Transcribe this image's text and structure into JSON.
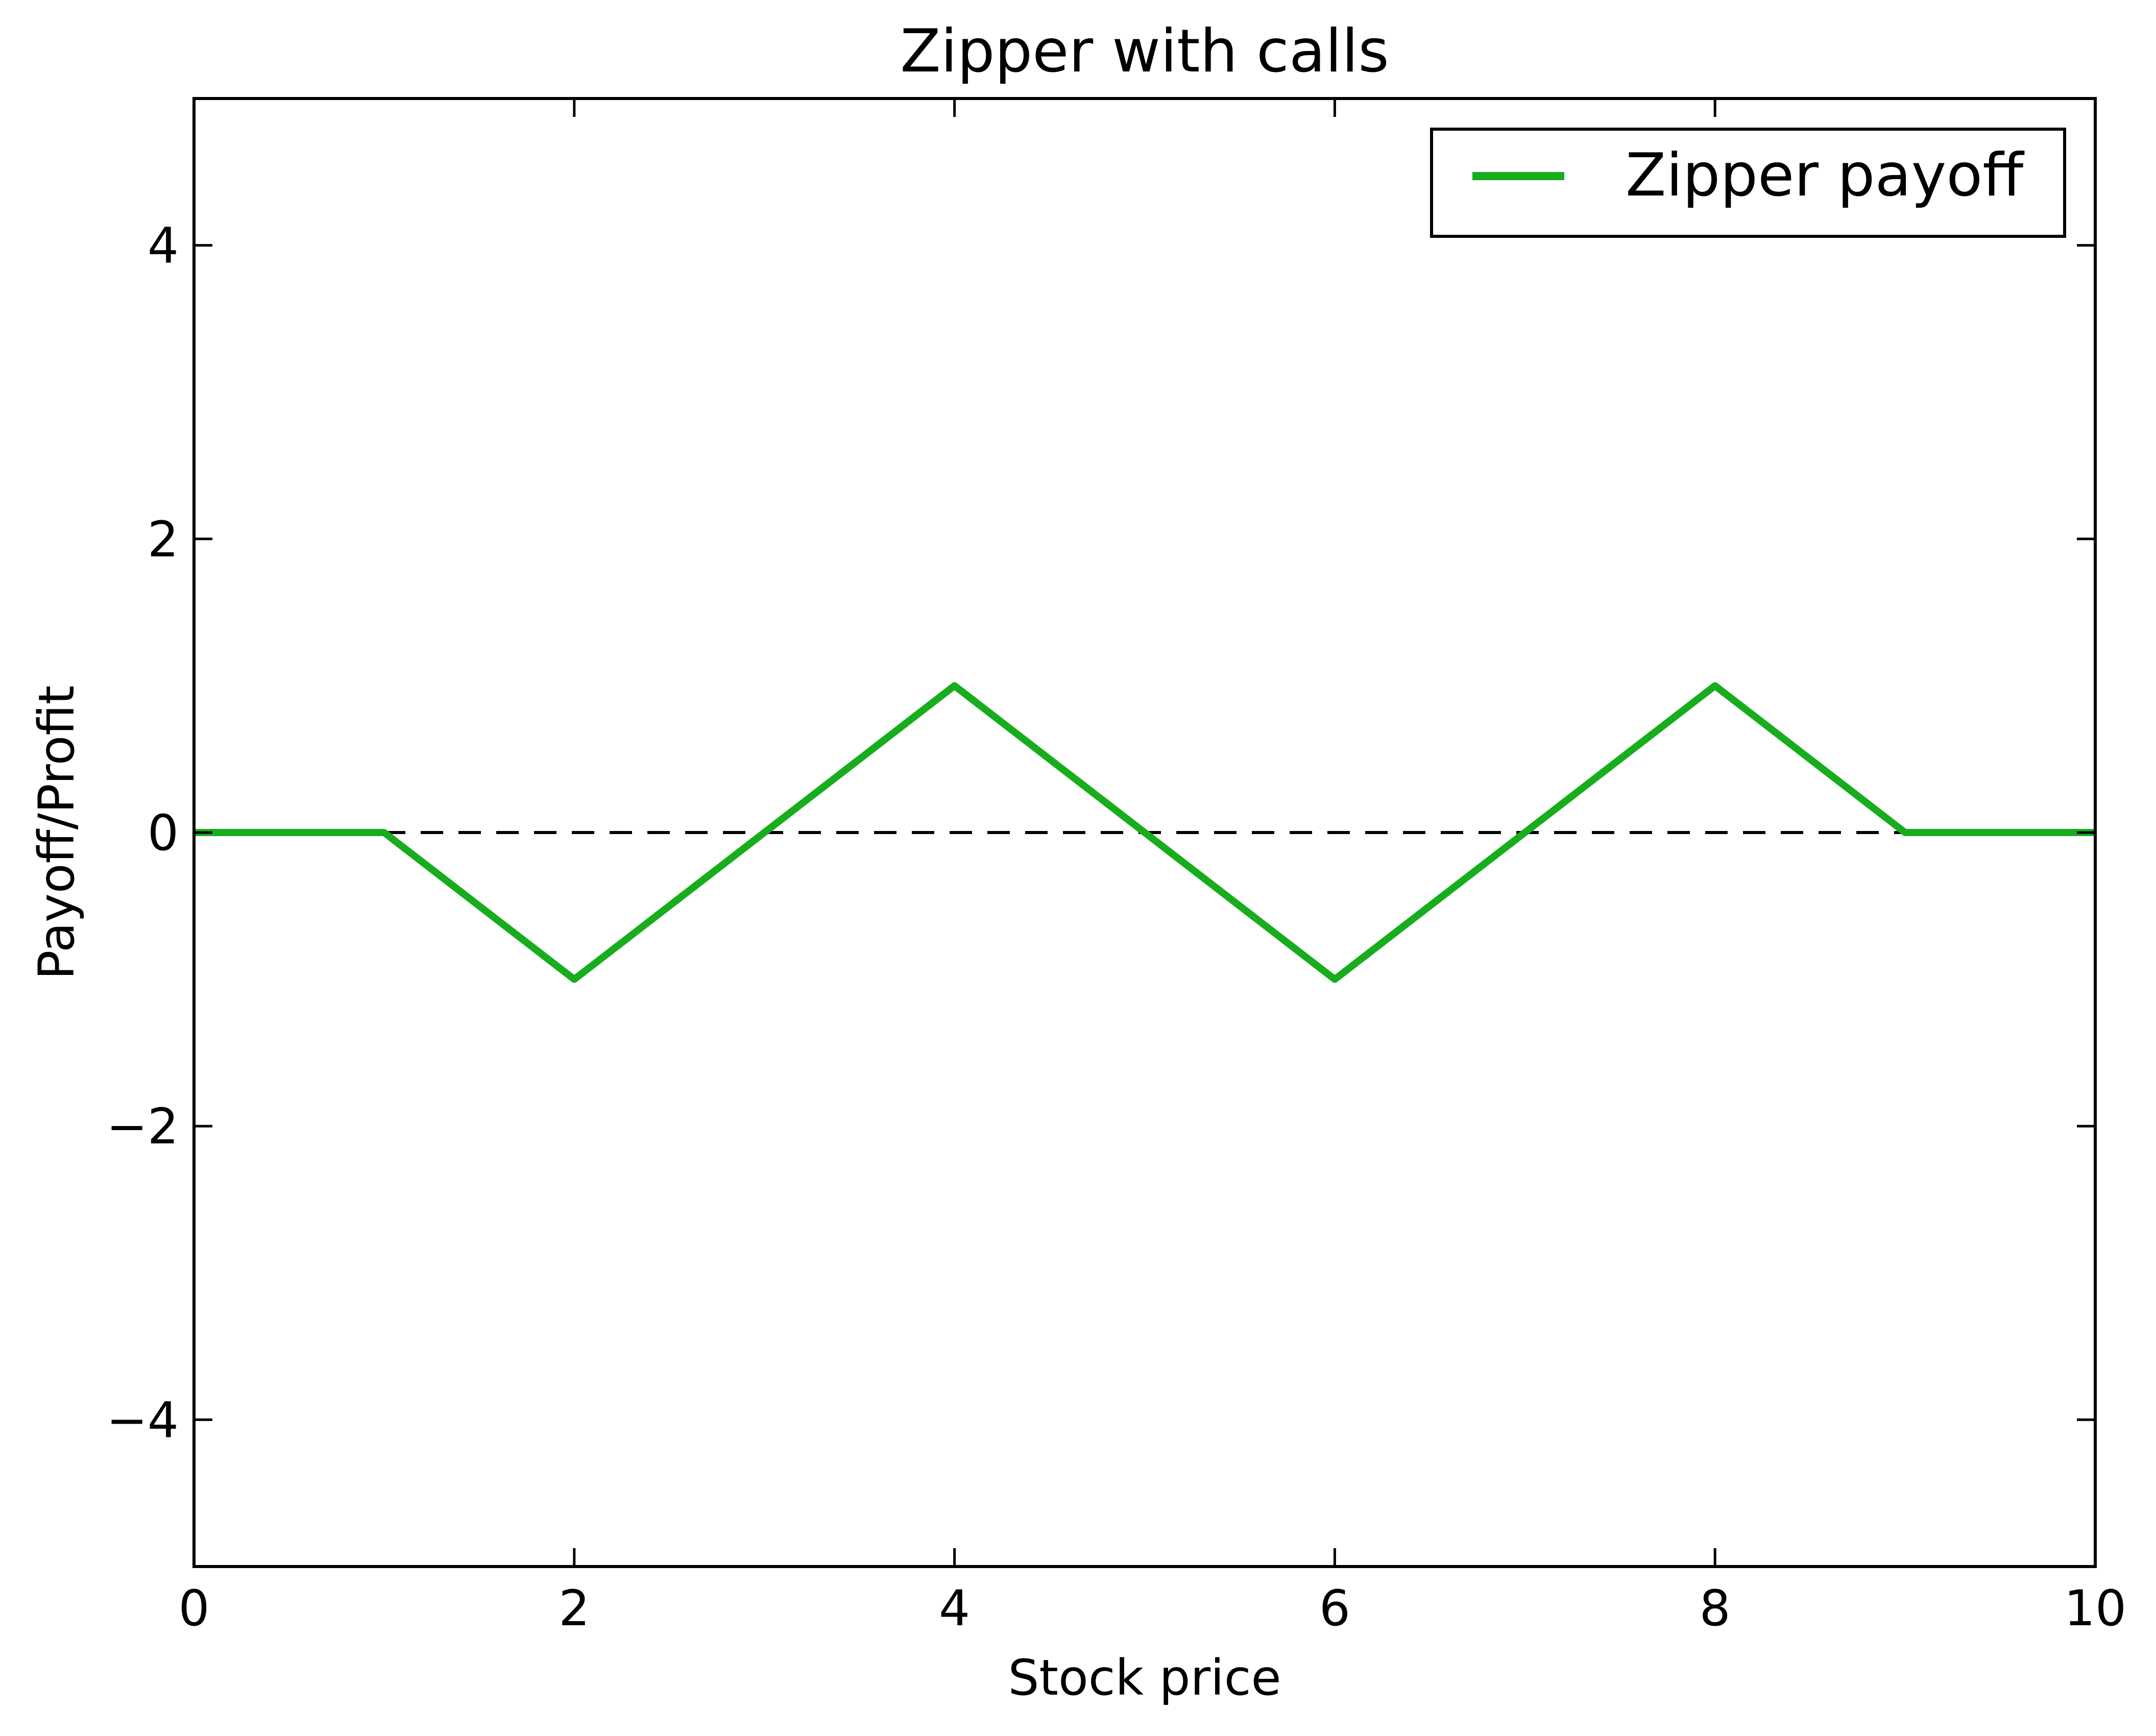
{
  "chart_data": {
    "type": "line",
    "title": "Zipper with calls",
    "xlabel": "Stock price",
    "ylabel": "Payoff/Profit",
    "xlim": [
      0,
      10
    ],
    "ylim": [
      -5,
      5
    ],
    "xticks": [
      0,
      2,
      4,
      6,
      8,
      10
    ],
    "xtick_labels": [
      "0",
      "2",
      "4",
      "6",
      "8",
      "10"
    ],
    "yticks": [
      -4,
      -2,
      0,
      2,
      4
    ],
    "ytick_labels": [
      "−4",
      "−2",
      "0",
      "2",
      "4"
    ],
    "grid": false,
    "legend_position": "top-right",
    "series": [
      {
        "name": "Zipper payoff",
        "color": "#17ad1d",
        "style": "solid",
        "x": [
          0,
          1,
          2,
          3,
          4,
          5,
          6,
          7,
          8,
          9,
          10
        ],
        "y": [
          0,
          0,
          -1,
          0,
          1,
          0,
          -1,
          0,
          1,
          0,
          0
        ]
      }
    ],
    "reference_lines": [
      {
        "axis": "y",
        "value": 0,
        "style": "dashed",
        "color": "#000000"
      }
    ]
  }
}
